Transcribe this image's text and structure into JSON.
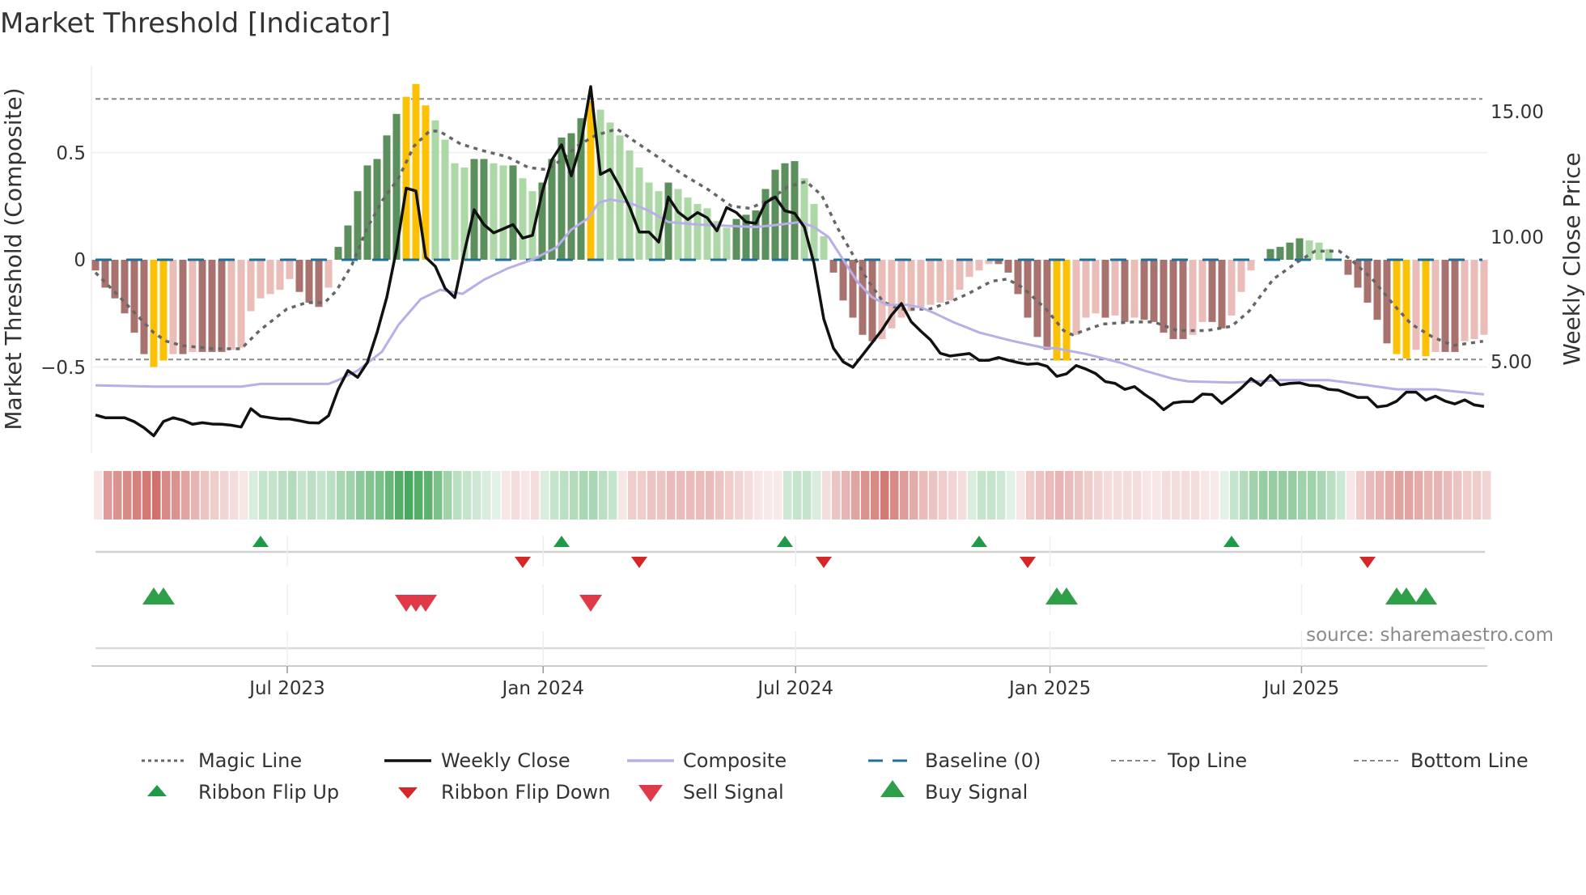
{
  "title": "Market Threshold [Indicator]",
  "chart_data": {
    "type": "bar",
    "title": "Market Threshold [Indicator]",
    "ylabel": "Market Threshold (Composite)",
    "ylabel_right": "Weekly Close Price",
    "xlabel": "",
    "x_unit": "week index",
    "ylim": [
      -0.88,
      0.9
    ],
    "ylim_right": [
      1.7,
      16.8
    ],
    "yticks": [
      {
        "value": 0.5,
        "label": "0.5"
      },
      {
        "value": 0,
        "label": "0"
      },
      {
        "value": -0.5,
        "label": "−0.5"
      }
    ],
    "yticks_right": [
      {
        "value": 15,
        "label": "15.00"
      },
      {
        "value": 10,
        "label": "10.00"
      },
      {
        "value": 5,
        "label": "5.00"
      }
    ],
    "xticks": [
      {
        "week": 19.75,
        "label": "Jul 2023"
      },
      {
        "week": 46.1,
        "label": "Jan 2024"
      },
      {
        "week": 72.1,
        "label": "Jul 2024"
      },
      {
        "week": 98.3,
        "label": "Jan 2025"
      },
      {
        "week": 124.2,
        "label": "Jul 2025"
      }
    ],
    "top_line": 0.75,
    "bottom_line": -0.465,
    "baseline": 0,
    "colors": {
      "dark_green": "#5b8f5b",
      "light_green": "#acd8a6",
      "dark_red": "#a8736f",
      "light_red": "#eabdb9",
      "extreme": "#fbc105",
      "magic": "#666666",
      "close": "#111111",
      "composite": "#b8aee8",
      "baseline": "#1f6f9a",
      "ribbon_green": "#36a04e",
      "ribbon_red": "#c4504b",
      "flip_up": "#1f9a47",
      "flip_down": "#d62728",
      "buy": "#2e9e48",
      "sell": "#e03a48"
    },
    "histogram": [
      -0.05,
      -0.13,
      -0.18,
      -0.25,
      -0.34,
      -0.44,
      -0.5,
      -0.47,
      -0.44,
      -0.44,
      -0.43,
      -0.43,
      -0.43,
      -0.43,
      -0.42,
      -0.41,
      -0.24,
      -0.18,
      -0.16,
      -0.14,
      -0.09,
      -0.15,
      -0.2,
      -0.22,
      -0.13,
      0.06,
      0.16,
      0.32,
      0.44,
      0.47,
      0.58,
      0.68,
      0.76,
      0.82,
      0.72,
      0.65,
      0.56,
      0.45,
      0.43,
      0.47,
      0.47,
      0.45,
      0.44,
      0.44,
      0.38,
      0.32,
      0.36,
      0.47,
      0.57,
      0.59,
      0.66,
      0.74,
      0.7,
      0.64,
      0.58,
      0.51,
      0.43,
      0.36,
      0.32,
      0.36,
      0.33,
      0.29,
      0.26,
      0.24,
      0.18,
      0.15,
      0.19,
      0.21,
      0.23,
      0.33,
      0.42,
      0.45,
      0.46,
      0.38,
      0.26,
      0.11,
      -0.06,
      -0.19,
      -0.27,
      -0.35,
      -0.38,
      -0.37,
      -0.32,
      -0.27,
      -0.24,
      -0.22,
      -0.21,
      -0.2,
      -0.19,
      -0.14,
      -0.08,
      -0.05,
      -0.02,
      -0.02,
      -0.06,
      -0.16,
      -0.27,
      -0.36,
      -0.42,
      -0.47,
      -0.47,
      -0.35,
      -0.27,
      -0.25,
      -0.27,
      -0.26,
      -0.29,
      -0.27,
      -0.28,
      -0.29,
      -0.34,
      -0.37,
      -0.37,
      -0.35,
      -0.29,
      -0.29,
      -0.32,
      -0.26,
      -0.15,
      -0.05,
      0,
      0.05,
      0.06,
      0.08,
      0.1,
      0.09,
      0.08,
      0.05,
      0,
      -0.07,
      -0.13,
      -0.2,
      -0.28,
      -0.39,
      -0.44,
      -0.46,
      -0.42,
      -0.45,
      -0.43,
      -0.43,
      -0.43,
      -0.38,
      -0.37,
      -0.35
    ],
    "extreme_weeks": [
      6,
      7,
      32,
      33,
      34,
      51,
      99,
      100,
      134,
      135,
      137
    ],
    "weekly_close": [
      2.91,
      2.8,
      2.8,
      2.8,
      2.64,
      2.4,
      2.08,
      2.65,
      2.8,
      2.7,
      2.54,
      2.6,
      2.55,
      2.54,
      2.5,
      2.43,
      3.16,
      2.86,
      2.8,
      2.75,
      2.75,
      2.68,
      2.6,
      2.59,
      2.88,
      3.93,
      4.68,
      4.41,
      5.0,
      6.2,
      7.6,
      9.5,
      11.95,
      11.84,
      9.2,
      8.83,
      7.96,
      7.59,
      9.42,
      11.09,
      10.5,
      10.17,
      10.33,
      10.5,
      9.96,
      10.07,
      11.79,
      13.08,
      13.68,
      12.44,
      13.75,
      16.0,
      12.5,
      12.7,
      12.0,
      11.2,
      10.2,
      10.2,
      9.8,
      11.6,
      11.0,
      10.7,
      10.98,
      10.77,
      10.25,
      11.18,
      10.98,
      10.6,
      10.55,
      11.37,
      11.6,
      11.05,
      10.95,
      10.4,
      8.95,
      6.74,
      5.57,
      5.03,
      4.81,
      5.3,
      5.8,
      6.3,
      6.9,
      7.35,
      6.63,
      6.25,
      5.9,
      5.37,
      5.26,
      5.31,
      5.36,
      5.09,
      5.09,
      5.2,
      5.09,
      5.0,
      4.93,
      4.96,
      4.85,
      4.45,
      4.55,
      4.88,
      4.74,
      4.56,
      4.24,
      4.17,
      3.93,
      4.04,
      3.74,
      3.48,
      3.12,
      3.39,
      3.44,
      3.44,
      3.74,
      3.72,
      3.37,
      3.66,
      3.98,
      4.36,
      4.09,
      4.49,
      4.11,
      4.17,
      4.19,
      4.09,
      4.07,
      3.93,
      3.9,
      3.75,
      3.61,
      3.61,
      3.23,
      3.28,
      3.46,
      3.82,
      3.82,
      3.5,
      3.66,
      3.46,
      3.35,
      3.51,
      3.31,
      3.25
    ],
    "composite_line": [
      [
        0,
        4.09
      ],
      [
        6,
        4.04
      ],
      [
        15,
        4.04
      ],
      [
        17,
        4.15
      ],
      [
        24,
        4.15
      ],
      [
        25,
        4.3
      ],
      [
        27,
        4.68
      ],
      [
        29.5,
        5.43
      ],
      [
        31.2,
        6.5
      ],
      [
        33.5,
        7.53
      ],
      [
        35.5,
        7.9
      ],
      [
        37.8,
        7.74
      ],
      [
        40,
        8.3
      ],
      [
        42.5,
        8.76
      ],
      [
        45,
        9.1
      ],
      [
        47.5,
        9.6
      ],
      [
        49,
        10.3
      ],
      [
        50.8,
        10.77
      ],
      [
        51.8,
        11.37
      ],
      [
        53,
        11.5
      ],
      [
        55,
        11.37
      ],
      [
        57,
        11.05
      ],
      [
        59,
        10.6
      ],
      [
        62,
        10.5
      ],
      [
        68,
        10.4
      ],
      [
        70.5,
        10.5
      ],
      [
        72.6,
        10.6
      ],
      [
        74,
        10.4
      ],
      [
        75.5,
        10.0
      ],
      [
        77,
        9.1
      ],
      [
        78.5,
        8.2
      ],
      [
        80,
        7.6
      ],
      [
        81.5,
        7.3
      ],
      [
        83.5,
        7.3
      ],
      [
        85,
        7.2
      ],
      [
        86.5,
        6.95
      ],
      [
        88.4,
        6.6
      ],
      [
        91,
        6.2
      ],
      [
        94,
        5.9
      ],
      [
        97.5,
        5.6
      ],
      [
        99,
        5.56
      ],
      [
        102,
        5.34
      ],
      [
        105.5,
        5.0
      ],
      [
        108,
        4.68
      ],
      [
        111,
        4.35
      ],
      [
        112.5,
        4.25
      ],
      [
        117,
        4.2
      ],
      [
        122,
        4.3
      ],
      [
        127,
        4.3
      ],
      [
        130,
        4.15
      ],
      [
        134,
        3.93
      ],
      [
        138,
        3.93
      ],
      [
        143,
        3.73
      ]
    ],
    "magic_line": [
      [
        0,
        -0.06
      ],
      [
        2.2,
        -0.16
      ],
      [
        4.1,
        -0.25
      ],
      [
        6,
        -0.34
      ],
      [
        7.3,
        -0.38
      ],
      [
        8.9,
        -0.4
      ],
      [
        12.1,
        -0.415
      ],
      [
        15,
        -0.415
      ],
      [
        16.9,
        -0.33
      ],
      [
        19.7,
        -0.23
      ],
      [
        21.7,
        -0.2
      ],
      [
        23.6,
        -0.2
      ],
      [
        24.8,
        -0.145
      ],
      [
        26.4,
        -0.025
      ],
      [
        28,
        0.15
      ],
      [
        29.6,
        0.28
      ],
      [
        31.2,
        0.38
      ],
      [
        32.8,
        0.53
      ],
      [
        34.4,
        0.6
      ],
      [
        35.4,
        0.6
      ],
      [
        37.6,
        0.54
      ],
      [
        39.8,
        0.51
      ],
      [
        42.4,
        0.48
      ],
      [
        44.6,
        0.43
      ],
      [
        46.5,
        0.42
      ],
      [
        48.1,
        0.47
      ],
      [
        49.6,
        0.53
      ],
      [
        51.5,
        0.58
      ],
      [
        53.7,
        0.61
      ],
      [
        55.6,
        0.55
      ],
      [
        57.9,
        0.48
      ],
      [
        60.4,
        0.4
      ],
      [
        63,
        0.33
      ],
      [
        65.5,
        0.25
      ],
      [
        67.4,
        0.24
      ],
      [
        69.4,
        0.28
      ],
      [
        71.3,
        0.34
      ],
      [
        73.2,
        0.365
      ],
      [
        74.8,
        0.3
      ],
      [
        76.4,
        0.15
      ],
      [
        78.3,
        0
      ],
      [
        79.6,
        -0.1
      ],
      [
        81.1,
        -0.195
      ],
      [
        82.7,
        -0.23
      ],
      [
        84.3,
        -0.23
      ],
      [
        85.9,
        -0.23
      ],
      [
        87.8,
        -0.2
      ],
      [
        89.8,
        -0.16
      ],
      [
        92.3,
        -0.1
      ],
      [
        93.9,
        -0.09
      ],
      [
        95.5,
        -0.13
      ],
      [
        97.9,
        -0.23
      ],
      [
        99.7,
        -0.33
      ],
      [
        100.6,
        -0.35
      ],
      [
        103.7,
        -0.3
      ],
      [
        106.8,
        -0.29
      ],
      [
        109,
        -0.29
      ],
      [
        111.4,
        -0.33
      ],
      [
        114.5,
        -0.33
      ],
      [
        117,
        -0.31
      ],
      [
        118.8,
        -0.24
      ],
      [
        121.3,
        -0.09
      ],
      [
        123.8,
        -0.01
      ],
      [
        125.6,
        0.04
      ],
      [
        128.1,
        0.04
      ],
      [
        129.3,
        0
      ],
      [
        131.5,
        -0.09
      ],
      [
        133.7,
        -0.21
      ],
      [
        135.5,
        -0.3
      ],
      [
        137.7,
        -0.36
      ],
      [
        139.8,
        -0.4
      ],
      [
        142.9,
        -0.38
      ]
    ],
    "ribbon": [
      -0.15,
      -0.6,
      -0.65,
      -0.7,
      -0.75,
      -0.8,
      -0.85,
      -0.7,
      -0.65,
      -0.55,
      -0.45,
      -0.35,
      -0.3,
      -0.25,
      -0.2,
      -0.15,
      0.2,
      0.3,
      0.3,
      0.35,
      0.4,
      0.3,
      0.35,
      0.3,
      0.35,
      0.45,
      0.5,
      0.6,
      0.65,
      0.7,
      0.8,
      0.9,
      0.95,
      0.9,
      0.85,
      0.7,
      0.5,
      0.35,
      0.3,
      0.25,
      0.2,
      0.15,
      -0.15,
      -0.2,
      -0.15,
      -0.2,
      0.2,
      0.3,
      0.35,
      0.4,
      0.45,
      0.45,
      0.35,
      0.3,
      -0.15,
      -0.3,
      -0.3,
      -0.35,
      -0.35,
      -0.4,
      -0.4,
      -0.4,
      -0.4,
      -0.4,
      -0.35,
      -0.3,
      -0.25,
      -0.2,
      -0.15,
      -0.1,
      -0.1,
      0.25,
      0.3,
      0.3,
      0.2,
      -0.2,
      -0.35,
      -0.45,
      -0.55,
      -0.65,
      -0.7,
      -0.8,
      -0.7,
      -0.6,
      -0.5,
      -0.4,
      -0.35,
      -0.3,
      -0.25,
      -0.2,
      0.2,
      0.3,
      0.3,
      0.25,
      0.15,
      -0.15,
      -0.3,
      -0.35,
      -0.4,
      -0.45,
      -0.4,
      -0.35,
      -0.3,
      -0.25,
      -0.2,
      -0.2,
      -0.2,
      -0.2,
      -0.15,
      -0.15,
      -0.2,
      -0.2,
      -0.2,
      -0.2,
      -0.15,
      -0.1,
      0.15,
      0.3,
      0.4,
      0.5,
      0.55,
      0.55,
      0.55,
      0.55,
      0.5,
      0.5,
      0.45,
      0.35,
      0.25,
      -0.15,
      -0.3,
      -0.4,
      -0.45,
      -0.5,
      -0.55,
      -0.55,
      -0.5,
      -0.45,
      -0.45,
      -0.4,
      -0.35,
      -0.3,
      -0.3,
      -0.25
    ],
    "ribbon_flip_up": [
      17,
      48,
      71,
      91,
      117
    ],
    "ribbon_flip_down": [
      44,
      56,
      75,
      96,
      131
    ],
    "buy_signal": [
      6,
      7,
      99,
      100,
      134,
      135,
      137
    ],
    "sell_signal": [
      32,
      33,
      34,
      51
    ],
    "legend": {
      "placement": "bottom",
      "magic": "Magic Line",
      "close": "Weekly Close",
      "composite": "Composite",
      "baseline": "Baseline (0)",
      "top": "Top Line",
      "bottom": "Bottom Line",
      "flip_up": "Ribbon Flip Up",
      "flip_down": "Ribbon Flip Down",
      "sell": "Sell Signal",
      "buy": "Buy Signal"
    },
    "source": "source: sharemaestro.com"
  }
}
